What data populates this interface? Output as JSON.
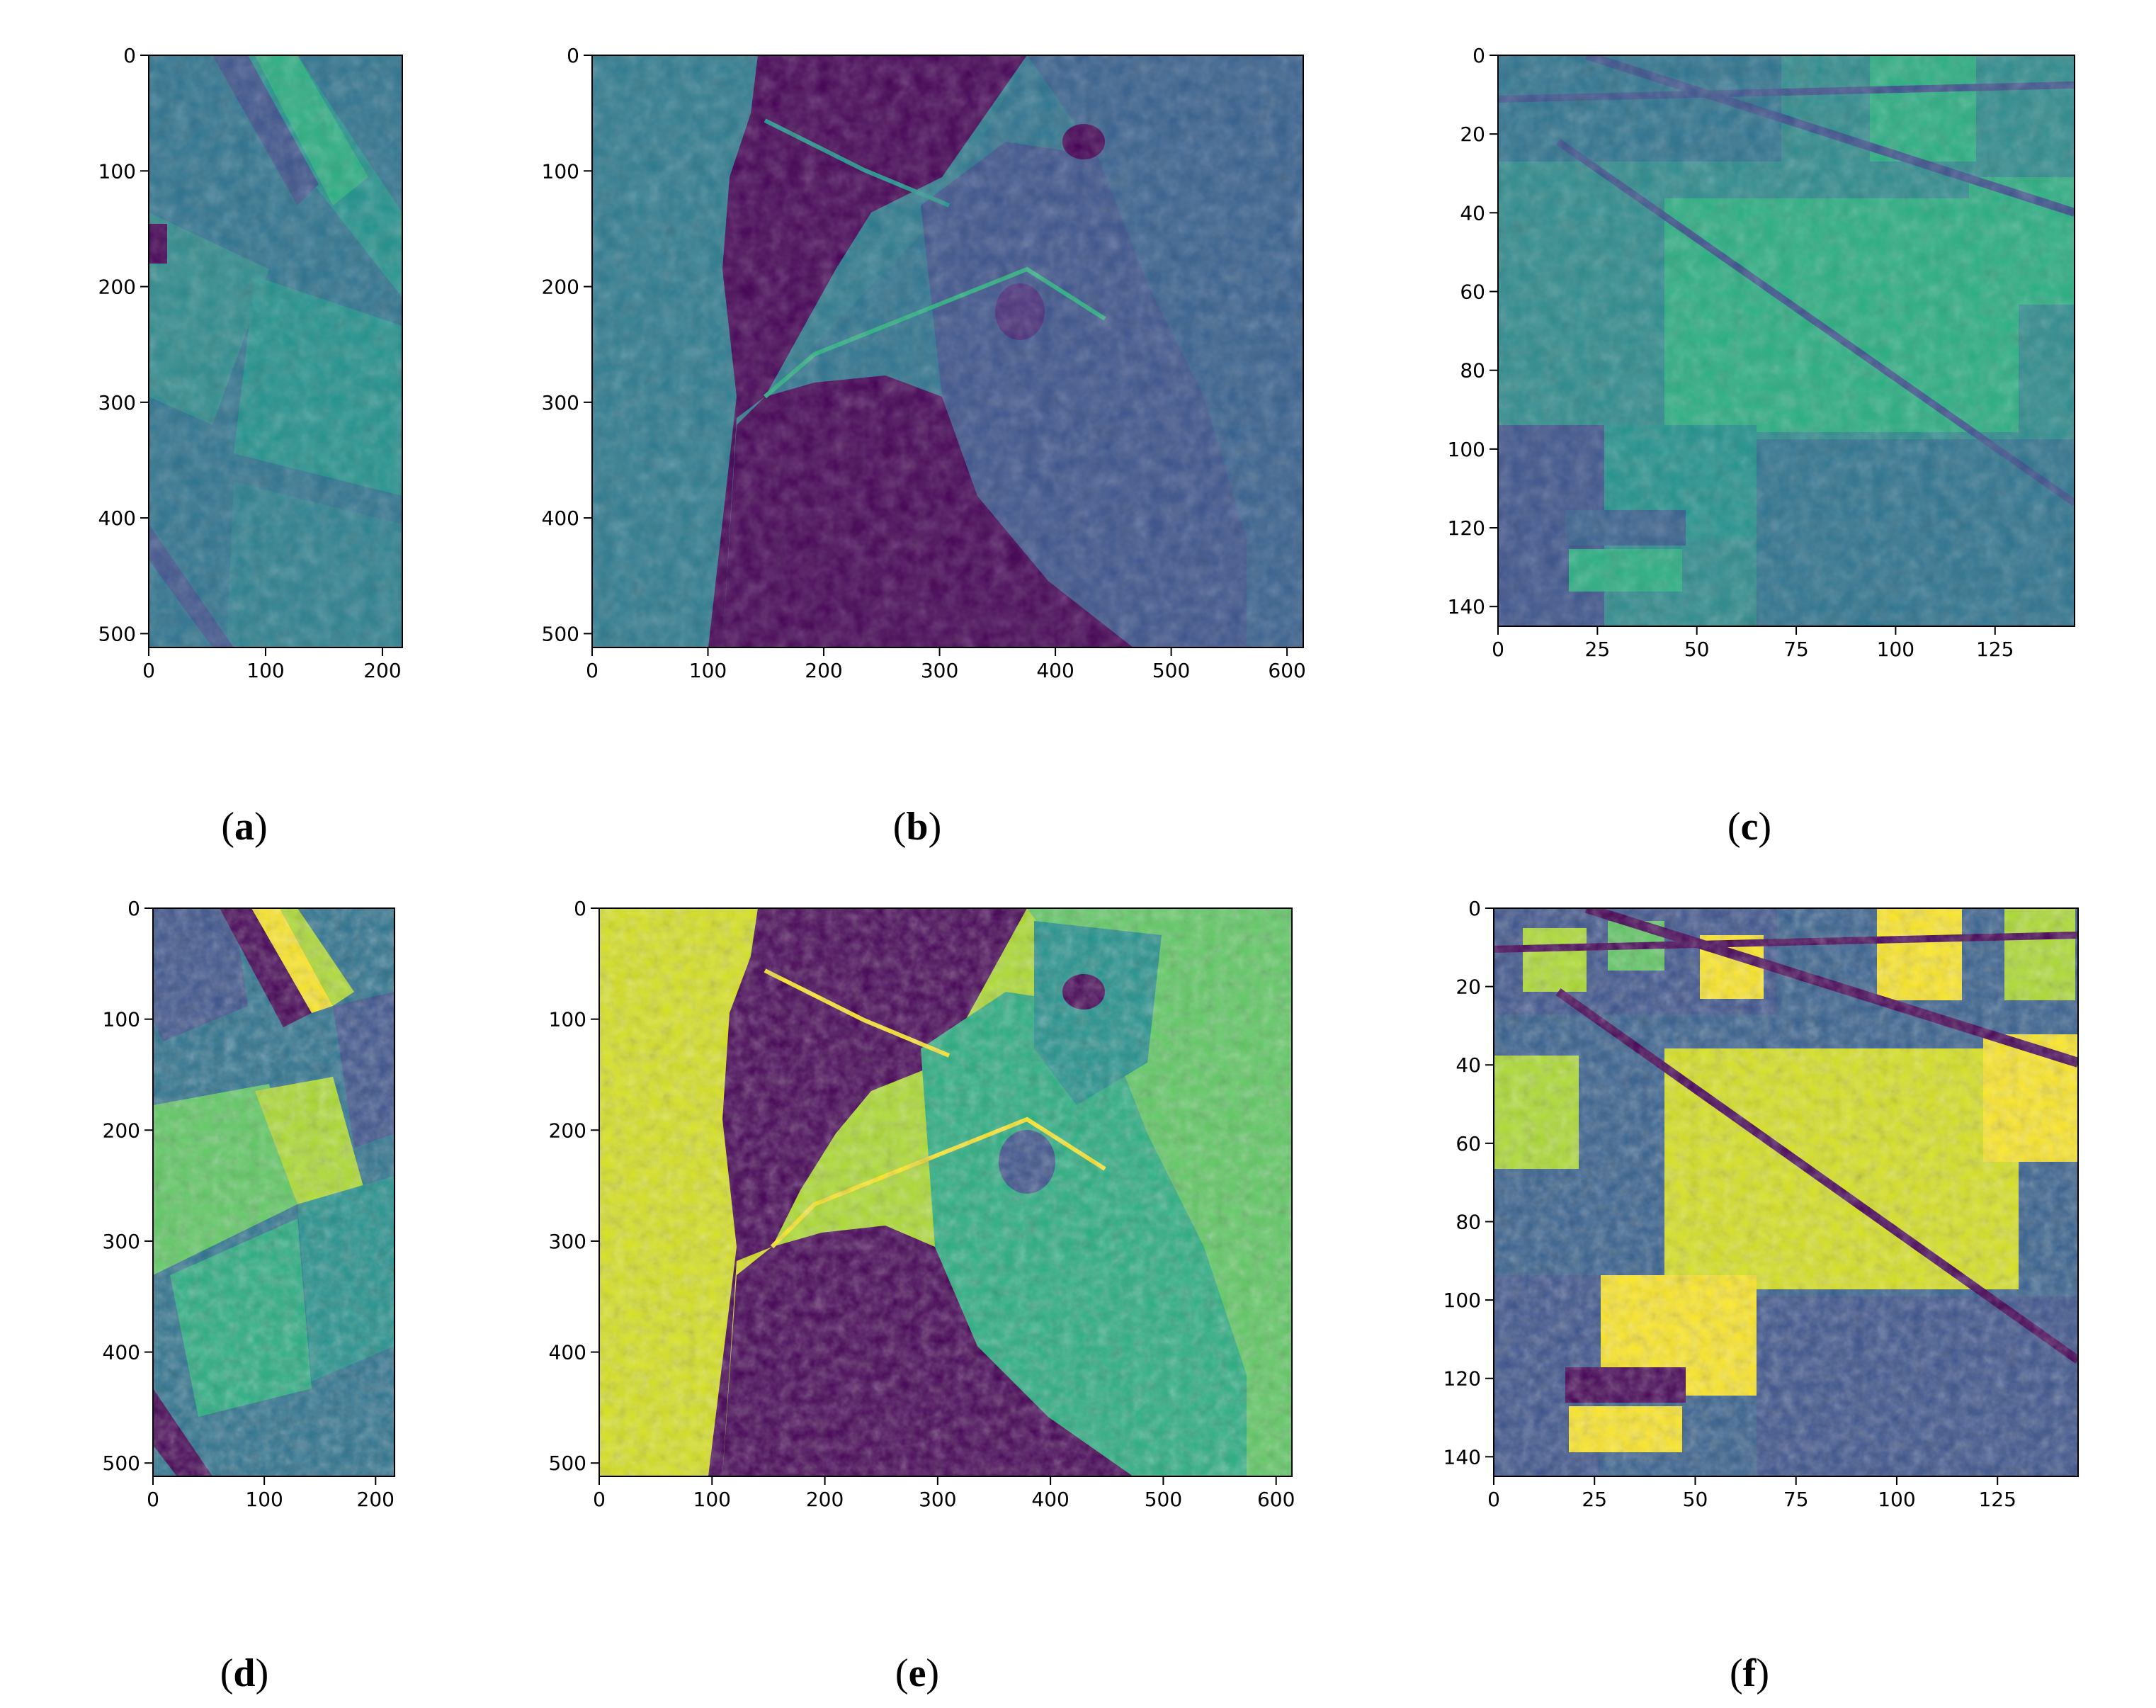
{
  "chart_data": [
    {
      "type": "heatmap",
      "panel_label": "a",
      "colormap": "viridis",
      "x_ticks": [
        0,
        100,
        200
      ],
      "y_ticks": [
        0,
        100,
        200,
        300,
        400,
        500
      ],
      "xlim": [
        0,
        217
      ],
      "ylim": [
        512,
        0
      ],
      "texture": "agricultural fields in rotated rectangles, low contrast (mostly teal)"
    },
    {
      "type": "heatmap",
      "panel_label": "b",
      "colormap": "viridis",
      "x_ticks": [
        0,
        100,
        200,
        300,
        400,
        500,
        600
      ],
      "y_ticks": [
        0,
        100,
        200,
        300,
        400,
        500
      ],
      "xlim": [
        0,
        614
      ],
      "ylim": [
        512,
        0
      ],
      "texture": "coastline with dark water body and land regions, low contrast"
    },
    {
      "type": "heatmap",
      "panel_label": "c",
      "colormap": "viridis",
      "x_ticks": [
        0,
        25,
        50,
        75,
        100,
        125
      ],
      "y_ticks": [
        0,
        20,
        40,
        60,
        80,
        100,
        120,
        140
      ],
      "xlim": [
        0,
        145
      ],
      "ylim": [
        145,
        0
      ],
      "texture": "crop field patchwork with diagonal roads, low contrast"
    },
    {
      "type": "heatmap",
      "panel_label": "d",
      "colormap": "viridis",
      "x_ticks": [
        0,
        100,
        200
      ],
      "y_ticks": [
        0,
        100,
        200,
        300,
        400,
        500
      ],
      "xlim": [
        0,
        217
      ],
      "ylim": [
        512,
        0
      ],
      "texture": "agricultural fields, enhanced contrast with bright yellow strips"
    },
    {
      "type": "heatmap",
      "panel_label": "e",
      "colormap": "viridis",
      "x_ticks": [
        0,
        100,
        200,
        300,
        400,
        500,
        600
      ],
      "y_ticks": [
        0,
        100,
        200,
        300,
        400,
        500
      ],
      "xlim": [
        0,
        614
      ],
      "ylim": [
        512,
        0
      ],
      "texture": "coastline, enhanced contrast: yellow land, dark purple water"
    },
    {
      "type": "heatmap",
      "panel_label": "f",
      "colormap": "viridis",
      "x_ticks": [
        0,
        25,
        50,
        75,
        100,
        125
      ],
      "y_ticks": [
        0,
        20,
        40,
        60,
        80,
        100,
        120,
        140
      ],
      "xlim": [
        0,
        145
      ],
      "ylim": [
        145,
        0
      ],
      "texture": "crop field patchwork, enhanced contrast with yellow fields"
    }
  ],
  "colors": {
    "viridis_0": "#440154",
    "viridis_1": "#472c7a",
    "viridis_2": "#3b528b",
    "viridis_3": "#2c728e",
    "viridis_4": "#21918c",
    "viridis_5": "#28ae80",
    "viridis_6": "#5ec962",
    "viridis_7": "#addc30",
    "viridis_8": "#fde725"
  }
}
